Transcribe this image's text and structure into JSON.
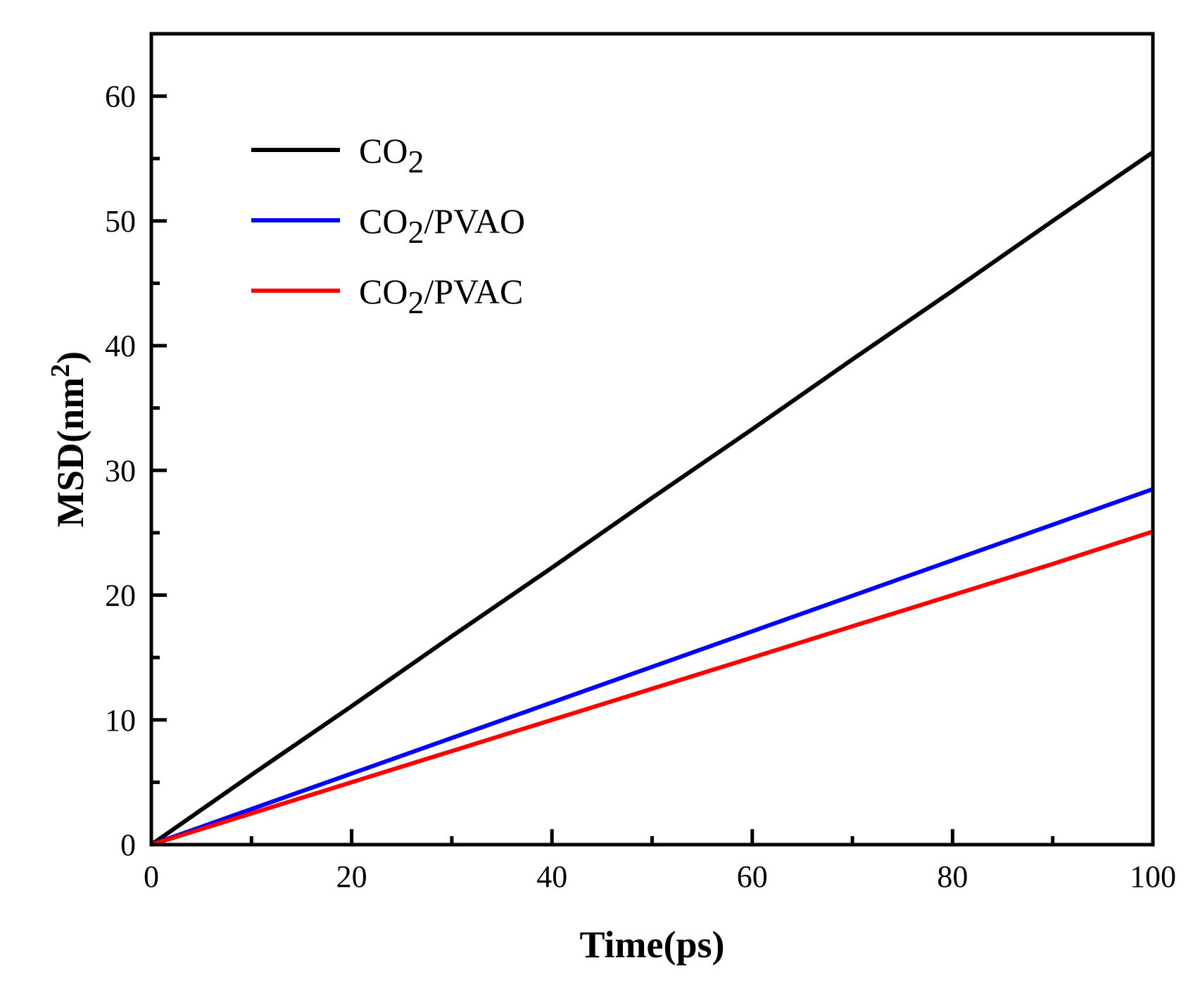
{
  "chart_data": {
    "type": "line",
    "xlabel": "Time(ps)",
    "ylabel": {
      "main": "MSD(nm",
      "sup": "2",
      "close": ")"
    },
    "xlim": [
      0,
      100
    ],
    "ylim": [
      0,
      65
    ],
    "x_ticks": [
      0,
      20,
      40,
      60,
      80,
      100
    ],
    "y_ticks": [
      0,
      10,
      20,
      30,
      40,
      50,
      60
    ],
    "x_minor_ticks": [
      10,
      30,
      50,
      70,
      90
    ],
    "y_minor_ticks": [
      5,
      15,
      25,
      35,
      45,
      55
    ],
    "grid": false,
    "legend_position": "top-left",
    "series": [
      {
        "name": {
          "base": "CO",
          "sub": "2",
          "suffix": ""
        },
        "color": "#000000",
        "x": [
          0,
          10,
          20,
          30,
          40,
          50,
          60,
          70,
          80,
          90,
          100
        ],
        "y": [
          0,
          5.6,
          11.1,
          16.7,
          22.2,
          27.8,
          33.3,
          38.9,
          44.4,
          50.0,
          55.5
        ]
      },
      {
        "name": {
          "base": "CO",
          "sub": "2",
          "suffix": "/PVAO"
        },
        "color": "#0000ff",
        "x": [
          0,
          10,
          20,
          30,
          40,
          50,
          60,
          70,
          80,
          90,
          100
        ],
        "y": [
          0,
          2.85,
          5.7,
          8.55,
          11.4,
          14.25,
          17.1,
          19.95,
          22.8,
          25.65,
          28.5
        ]
      },
      {
        "name": {
          "base": "CO",
          "sub": "2",
          "suffix": "/PVAC"
        },
        "color": "#ff0000",
        "x": [
          0,
          10,
          20,
          30,
          40,
          50,
          60,
          70,
          80,
          90,
          100
        ],
        "y": [
          0,
          2.5,
          5.0,
          7.5,
          10.0,
          12.5,
          15.0,
          17.5,
          20.0,
          22.5,
          25.1
        ]
      }
    ]
  }
}
